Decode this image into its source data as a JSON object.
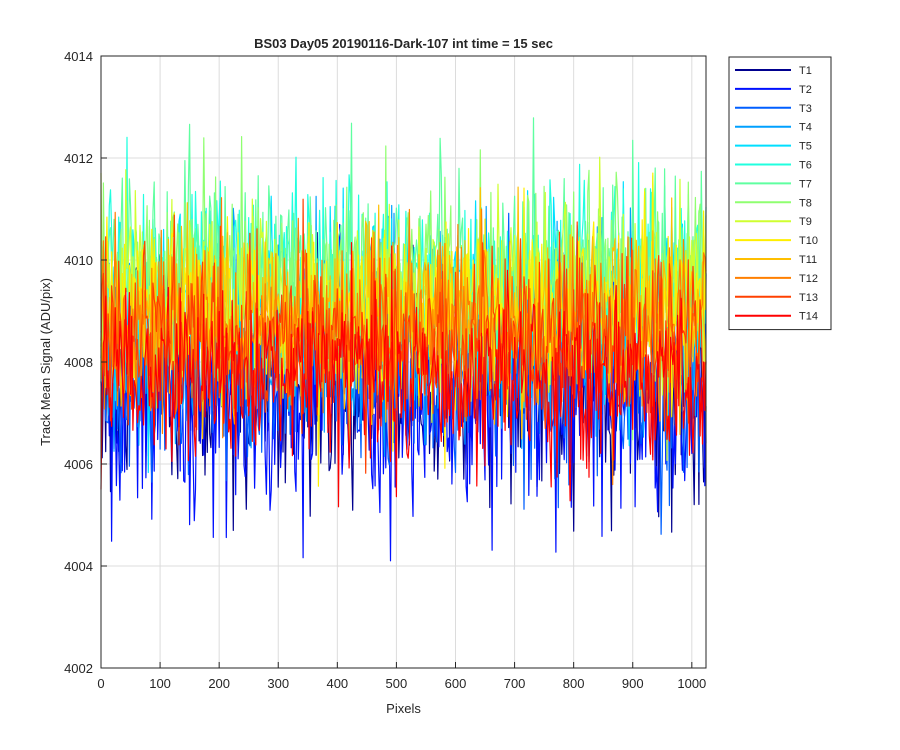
{
  "chart_data": {
    "type": "line",
    "title": "BS03 Day05 20190116-Dark-107 int time = 15 sec",
    "xlabel": "Pixels",
    "ylabel": "Track Mean Signal (ADU/pix)",
    "xlim": [
      0,
      1024
    ],
    "ylim": [
      4002,
      4014
    ],
    "xticks": [
      0,
      100,
      200,
      300,
      400,
      500,
      600,
      700,
      800,
      900,
      1000
    ],
    "yticks": [
      4002,
      4004,
      4006,
      4008,
      4010,
      4012,
      4014
    ],
    "grid": true,
    "legend_placement": "outside-right",
    "series": [
      {
        "name": "T1",
        "color": "#00008f",
        "mean": 4007.5,
        "spread": 1.1
      },
      {
        "name": "T2",
        "color": "#0010ff",
        "mean": 4007.4,
        "spread": 1.1
      },
      {
        "name": "T3",
        "color": "#005fff",
        "mean": 4007.8,
        "spread": 1.0
      },
      {
        "name": "T4",
        "color": "#00a0ff",
        "mean": 4008.5,
        "spread": 1.0
      },
      {
        "name": "T5",
        "color": "#00dfff",
        "mean": 4009.2,
        "spread": 0.9
      },
      {
        "name": "T6",
        "color": "#20ffdf",
        "mean": 4009.6,
        "spread": 0.9
      },
      {
        "name": "T7",
        "color": "#5fffa0",
        "mean": 4009.7,
        "spread": 0.9
      },
      {
        "name": "T8",
        "color": "#8fff70",
        "mean": 4009.5,
        "spread": 0.9
      },
      {
        "name": "T9",
        "color": "#cfff30",
        "mean": 4009.3,
        "spread": 0.9
      },
      {
        "name": "T10",
        "color": "#ffef00",
        "mean": 4009.0,
        "spread": 0.9
      },
      {
        "name": "T11",
        "color": "#ffbf00",
        "mean": 4008.8,
        "spread": 0.9
      },
      {
        "name": "T12",
        "color": "#ff7f00",
        "mean": 4008.6,
        "spread": 0.9
      },
      {
        "name": "T13",
        "color": "#ff4000",
        "mean": 4008.4,
        "spread": 0.9
      },
      {
        "name": "T14",
        "color": "#ff0000",
        "mean": 4007.6,
        "spread": 0.9
      }
    ]
  }
}
